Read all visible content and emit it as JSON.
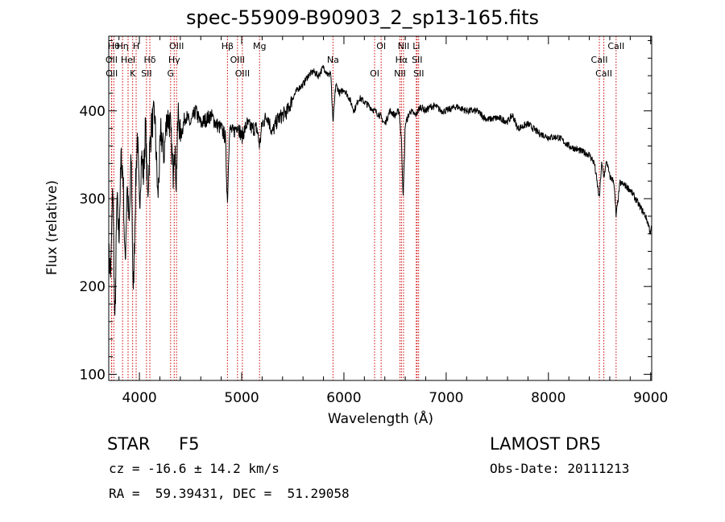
{
  "chart_data": {
    "type": "line",
    "title": "spec-55909-B90903_2_sp13-165.fits",
    "xlabel": "Wavelength (Å)",
    "ylabel": "Flux (relative)",
    "xlim": [
      3700,
      9010
    ],
    "ylim": [
      93,
      485
    ],
    "x_ticks": [
      4000,
      5000,
      6000,
      7000,
      8000,
      9000
    ],
    "y_ticks": [
      100,
      200,
      300,
      400
    ],
    "grid": false,
    "spectrum": {
      "x": [
        3700,
        3720,
        3740,
        3760,
        3780,
        3800,
        3820,
        3840,
        3860,
        3880,
        3900,
        3920,
        3940,
        3960,
        3980,
        4000,
        4020,
        4040,
        4060,
        4080,
        4100,
        4120,
        4150,
        4180,
        4210,
        4240,
        4270,
        4300,
        4330,
        4340,
        4360,
        4380,
        4400,
        4450,
        4500,
        4550,
        4600,
        4650,
        4700,
        4750,
        4800,
        4840,
        4861,
        4880,
        4920,
        4960,
        5000,
        5050,
        5100,
        5150,
        5175,
        5200,
        5250,
        5300,
        5350,
        5400,
        5450,
        5500,
        5550,
        5600,
        5650,
        5700,
        5750,
        5800,
        5850,
        5870,
        5893,
        5920,
        5960,
        6000,
        6050,
        6100,
        6150,
        6200,
        6250,
        6300,
        6350,
        6400,
        6450,
        6500,
        6540,
        6563,
        6580,
        6600,
        6650,
        6700,
        6750,
        6800,
        6850,
        6900,
        6950,
        7000,
        7100,
        7200,
        7300,
        7400,
        7500,
        7600,
        7650,
        7700,
        7800,
        7900,
        8000,
        8100,
        8200,
        8300,
        8400,
        8450,
        8498,
        8520,
        8542,
        8570,
        8600,
        8640,
        8662,
        8700,
        8750,
        8800,
        8850,
        8900,
        8950,
        8980,
        9000,
        9010
      ],
      "y": [
        235,
        215,
        320,
        150,
        300,
        255,
        345,
        330,
        220,
        320,
        265,
        350,
        185,
        300,
        375,
        290,
        350,
        325,
        385,
        300,
        355,
        385,
        395,
        300,
        375,
        350,
        395,
        385,
        330,
        370,
        320,
        400,
        370,
        395,
        385,
        400,
        385,
        390,
        395,
        385,
        380,
        370,
        295,
        380,
        375,
        385,
        370,
        385,
        380,
        380,
        360,
        385,
        395,
        375,
        390,
        395,
        400,
        415,
        425,
        430,
        440,
        445,
        440,
        450,
        440,
        445,
        385,
        430,
        420,
        425,
        415,
        400,
        415,
        410,
        405,
        400,
        395,
        385,
        400,
        395,
        400,
        365,
        300,
        385,
        400,
        395,
        405,
        400,
        405,
        405,
        400,
        400,
        405,
        400,
        400,
        390,
        392,
        388,
        395,
        380,
        385,
        375,
        370,
        370,
        360,
        355,
        350,
        340,
        300,
        340,
        325,
        343,
        325,
        320,
        280,
        318,
        315,
        310,
        300,
        290,
        280,
        270,
        260,
        270
      ]
    },
    "lines": [
      {
        "label": "Hθ",
        "x": 3750
      },
      {
        "label": "OII",
        "x": 3727
      },
      {
        "label": "OII",
        "x": 3729
      },
      {
        "label": "Hη",
        "x": 3835
      },
      {
        "label": "HeI",
        "x": 3889
      },
      {
        "label": "K",
        "x": 3934
      },
      {
        "label": "H",
        "x": 3968
      },
      {
        "label": "Hδ",
        "x": 4102
      },
      {
        "label": "SII",
        "x": 4069
      },
      {
        "label": "OIII",
        "x": 4363
      },
      {
        "label": "Hγ",
        "x": 4340
      },
      {
        "label": "G",
        "x": 4305
      },
      {
        "label": "Hβ",
        "x": 4861
      },
      {
        "label": "OIII",
        "x": 4959
      },
      {
        "label": "OIII",
        "x": 5007
      },
      {
        "label": "Mg",
        "x": 5175
      },
      {
        "label": "Na",
        "x": 5893
      },
      {
        "label": "OI",
        "x": 6300
      },
      {
        "label": "OI",
        "x": 6364
      },
      {
        "label": "Hα",
        "x": 6563
      },
      {
        "label": "NII",
        "x": 6548
      },
      {
        "label": "NII",
        "x": 6583
      },
      {
        "label": "SII",
        "x": 6716
      },
      {
        "label": "SII",
        "x": 6731
      },
      {
        "label": "Li",
        "x": 6708
      },
      {
        "label": "CaII",
        "x": 8498
      },
      {
        "label": "CaII",
        "x": 8542
      },
      {
        "label": "CaII",
        "x": 8662
      }
    ],
    "line_color": "#000000",
    "marker_color": "#cc0000"
  },
  "footer": {
    "object_type": "STAR",
    "subclass": "F5",
    "survey": "LAMOST DR5",
    "cz": "cz = -16.6 ± 14.2 km/s",
    "obs_date": "Obs-Date: 20111213",
    "radec": "RA =  59.39431, DEC =  51.29058"
  }
}
